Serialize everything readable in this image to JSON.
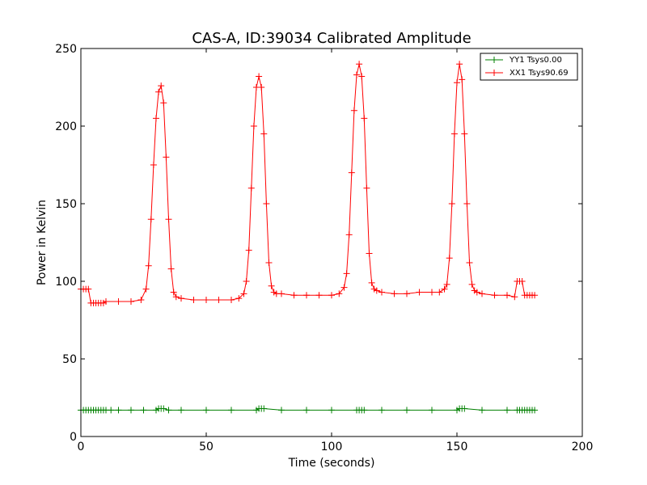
{
  "chart_data": {
    "type": "line",
    "title": "CAS-A, ID:39034 Calibrated Amplitude",
    "xlabel": "Time (seconds)",
    "ylabel": "Power in Kelvin",
    "xlim": [
      0,
      200
    ],
    "ylim": [
      0,
      250
    ],
    "xticks": [
      "0",
      "50",
      "100",
      "150",
      "200"
    ],
    "yticks": [
      "0",
      "50",
      "100",
      "150",
      "200",
      "250"
    ],
    "grid": false,
    "legend_position": "top-right",
    "series": [
      {
        "name": "YY1 Tsys0.00",
        "color": "#008000",
        "marker": "+",
        "x": [
          0,
          1,
          2,
          3,
          4,
          5,
          6,
          7,
          8,
          9,
          10,
          12,
          15,
          20,
          25,
          30,
          31,
          32,
          33,
          35,
          40,
          50,
          60,
          70,
          71,
          72,
          73,
          80,
          90,
          100,
          110,
          111,
          112,
          113,
          120,
          130,
          140,
          150,
          151,
          152,
          153,
          160,
          170,
          174,
          175,
          176,
          177,
          178,
          179,
          180,
          181
        ],
        "y": [
          17,
          17,
          17,
          17,
          17,
          17,
          17,
          17,
          17,
          17,
          17,
          17,
          17,
          17,
          17,
          17,
          18,
          18,
          18,
          17,
          17,
          17,
          17,
          17,
          18,
          18,
          18,
          17,
          17,
          17,
          17,
          17,
          17,
          17,
          17,
          17,
          17,
          17,
          18,
          18,
          18,
          17,
          17,
          17,
          17,
          17,
          17,
          17,
          17,
          17,
          17
        ]
      },
      {
        "name": "XX1 Tsys90.69",
        "color": "#ff0000",
        "marker": "+",
        "x": [
          0,
          1,
          2,
          3,
          4,
          5,
          6,
          7,
          8,
          9,
          10,
          15,
          20,
          24,
          26,
          27,
          28,
          29,
          30,
          31,
          32,
          33,
          34,
          35,
          36,
          37,
          38,
          40,
          45,
          50,
          55,
          60,
          63,
          65,
          66,
          67,
          68,
          69,
          70,
          71,
          72,
          73,
          74,
          75,
          76,
          77,
          78,
          80,
          85,
          90,
          95,
          100,
          103,
          105,
          106,
          107,
          108,
          109,
          110,
          111,
          112,
          113,
          114,
          115,
          116,
          117,
          118,
          120,
          125,
          130,
          135,
          140,
          143,
          145,
          146,
          147,
          148,
          149,
          150,
          151,
          152,
          153,
          154,
          155,
          156,
          157,
          158,
          160,
          165,
          170,
          173,
          174,
          175,
          176,
          177,
          178,
          179,
          180,
          181
        ],
        "y": [
          95,
          95,
          95,
          95,
          86,
          86,
          86,
          86,
          86,
          86,
          87,
          87,
          87,
          88,
          95,
          110,
          140,
          175,
          205,
          222,
          226,
          215,
          180,
          140,
          108,
          93,
          90,
          89,
          88,
          88,
          88,
          88,
          89,
          92,
          100,
          120,
          160,
          200,
          225,
          232,
          225,
          195,
          150,
          112,
          97,
          93,
          92,
          92,
          91,
          91,
          91,
          91,
          92,
          96,
          105,
          130,
          170,
          210,
          233,
          240,
          232,
          205,
          160,
          118,
          99,
          95,
          94,
          93,
          92,
          92,
          93,
          93,
          93,
          95,
          98,
          115,
          150,
          195,
          228,
          240,
          230,
          195,
          150,
          112,
          98,
          94,
          93,
          92,
          91,
          91,
          90,
          100,
          100,
          100,
          91,
          91,
          91,
          91,
          91
        ]
      }
    ]
  }
}
